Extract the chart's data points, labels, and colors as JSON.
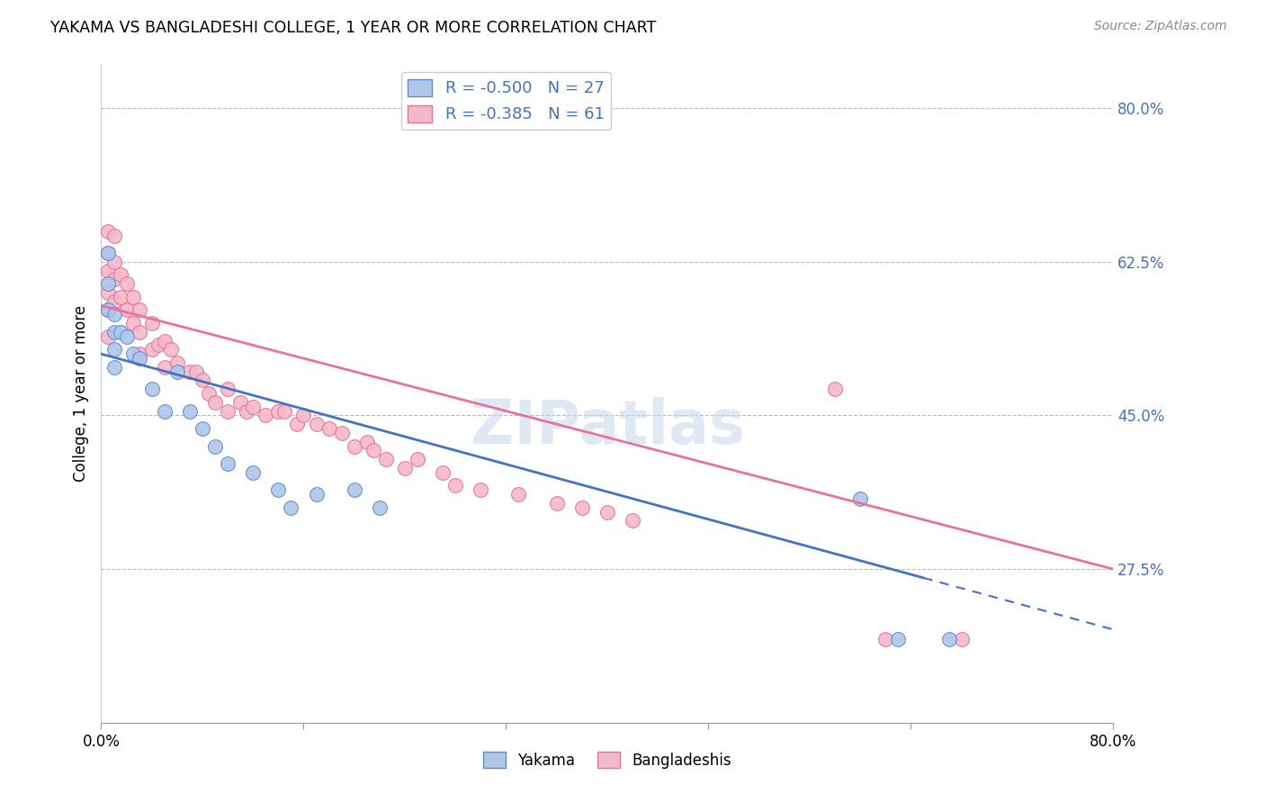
{
  "title": "YAKAMA VS BANGLADESHI COLLEGE, 1 YEAR OR MORE CORRELATION CHART",
  "source": "Source: ZipAtlas.com",
  "ylabel": "College, 1 year or more",
  "xlim": [
    0.0,
    0.8
  ],
  "ylim": [
    0.1,
    0.85
  ],
  "y_ticks": [
    0.275,
    0.45,
    0.625,
    0.8
  ],
  "y_tick_labels": [
    "27.5%",
    "45.0%",
    "62.5%",
    "80.0%"
  ],
  "x_ticks": [
    0.0,
    0.16,
    0.32,
    0.48,
    0.64,
    0.8
  ],
  "x_tick_labels": [
    "0.0%",
    "",
    "",
    "",
    "",
    "80.0%"
  ],
  "legend_line1": "R = -0.500   N = 27",
  "legend_line2": "R = -0.385   N = 61",
  "color_yakama_fill": "#aec6e8",
  "color_yakama_edge": "#5b8dd9",
  "color_bangladeshi_fill": "#f5b8c8",
  "color_bangladeshi_edge": "#e8729a",
  "color_line_yakama": "#4472c4",
  "color_line_bangladeshi": "#e8729a",
  "watermark": "ZIPatlas",
  "blue_line_x0": 0.0,
  "blue_line_y0": 0.52,
  "blue_line_x1": 0.65,
  "blue_line_y1": 0.265,
  "pink_line_x0": 0.0,
  "pink_line_y0": 0.575,
  "pink_line_x1": 0.8,
  "pink_line_y1": 0.275,
  "yakama_x": [
    0.005,
    0.005,
    0.005,
    0.01,
    0.01,
    0.01,
    0.01,
    0.015,
    0.02,
    0.025,
    0.03,
    0.04,
    0.05,
    0.06,
    0.07,
    0.08,
    0.09,
    0.1,
    0.12,
    0.14,
    0.15,
    0.17,
    0.2,
    0.22,
    0.6,
    0.63,
    0.67
  ],
  "yakama_y": [
    0.635,
    0.6,
    0.57,
    0.565,
    0.545,
    0.525,
    0.505,
    0.545,
    0.54,
    0.52,
    0.515,
    0.48,
    0.455,
    0.5,
    0.455,
    0.435,
    0.415,
    0.395,
    0.385,
    0.365,
    0.345,
    0.36,
    0.365,
    0.345,
    0.355,
    0.195,
    0.195
  ],
  "bangladeshi_x": [
    0.005,
    0.005,
    0.005,
    0.005,
    0.005,
    0.005,
    0.01,
    0.01,
    0.01,
    0.01,
    0.015,
    0.015,
    0.02,
    0.02,
    0.025,
    0.025,
    0.03,
    0.03,
    0.03,
    0.04,
    0.04,
    0.045,
    0.05,
    0.05,
    0.055,
    0.06,
    0.07,
    0.075,
    0.08,
    0.085,
    0.09,
    0.1,
    0.1,
    0.11,
    0.115,
    0.12,
    0.13,
    0.14,
    0.145,
    0.155,
    0.16,
    0.17,
    0.18,
    0.19,
    0.2,
    0.21,
    0.215,
    0.225,
    0.24,
    0.25,
    0.27,
    0.28,
    0.3,
    0.33,
    0.36,
    0.38,
    0.4,
    0.42,
    0.58,
    0.62,
    0.68
  ],
  "bangladeshi_y": [
    0.66,
    0.635,
    0.615,
    0.59,
    0.57,
    0.54,
    0.655,
    0.625,
    0.605,
    0.58,
    0.61,
    0.585,
    0.6,
    0.57,
    0.585,
    0.555,
    0.57,
    0.545,
    0.52,
    0.555,
    0.525,
    0.53,
    0.535,
    0.505,
    0.525,
    0.51,
    0.5,
    0.5,
    0.49,
    0.475,
    0.465,
    0.48,
    0.455,
    0.465,
    0.455,
    0.46,
    0.45,
    0.455,
    0.455,
    0.44,
    0.45,
    0.44,
    0.435,
    0.43,
    0.415,
    0.42,
    0.41,
    0.4,
    0.39,
    0.4,
    0.385,
    0.37,
    0.365,
    0.36,
    0.35,
    0.345,
    0.34,
    0.33,
    0.48,
    0.195,
    0.195
  ]
}
